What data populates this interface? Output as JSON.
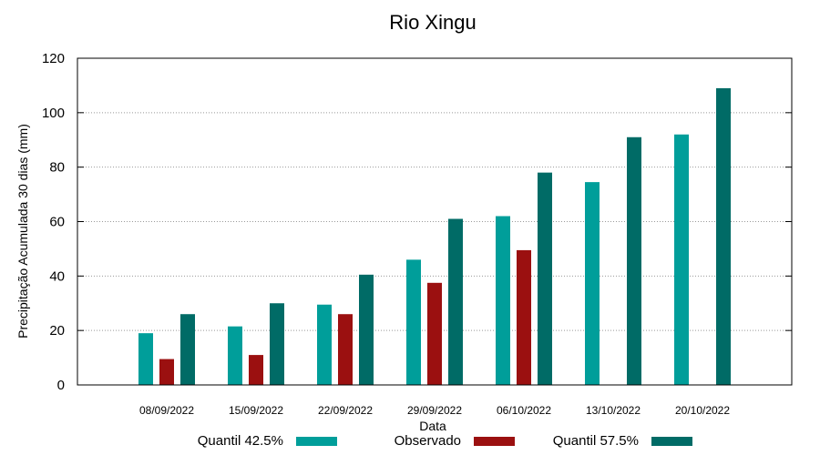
{
  "chart_data": {
    "type": "bar",
    "title": "Rio Xingu",
    "xlabel": "Data",
    "ylabel": "Precipitação Acumulada 30 dias (mm)",
    "ylim": [
      0,
      120
    ],
    "yticks": [
      0,
      20,
      40,
      60,
      80,
      100,
      120
    ],
    "grid": true,
    "legend_position": "bottom",
    "categories": [
      "08/09/2022",
      "15/09/2022",
      "22/09/2022",
      "29/09/2022",
      "06/10/2022",
      "13/10/2022",
      "20/10/2022"
    ],
    "series": [
      {
        "name": "Quantil 42.5%",
        "color": "#009e9a",
        "values": [
          19,
          21.5,
          29.5,
          46,
          62,
          74.5,
          92
        ]
      },
      {
        "name": "Observado",
        "color": "#9b1010",
        "values": [
          9.5,
          11,
          26,
          37.5,
          49.5,
          null,
          null
        ]
      },
      {
        "name": "Quantil 57.5%",
        "color": "#006b66",
        "values": [
          26,
          30,
          40.5,
          61,
          78,
          91,
          109
        ]
      }
    ]
  }
}
